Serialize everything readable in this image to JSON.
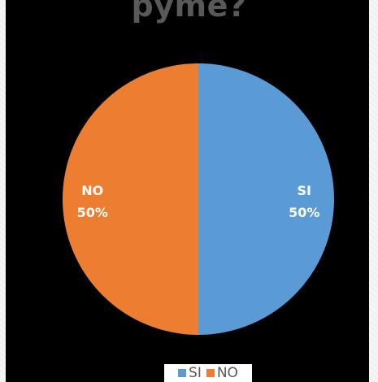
{
  "chart_data": {
    "type": "pie",
    "title": "pyme?",
    "categories": [
      "SI",
      "NO"
    ],
    "values": [
      50,
      50
    ],
    "data_labels": [
      {
        "category": "SI",
        "percent": "50%"
      },
      {
        "category": "NO",
        "percent": "50%"
      }
    ],
    "colors": [
      "#5b9bd5",
      "#ed7d31"
    ],
    "legend": {
      "position": "bottom",
      "entries": [
        "SI",
        "NO"
      ]
    }
  }
}
